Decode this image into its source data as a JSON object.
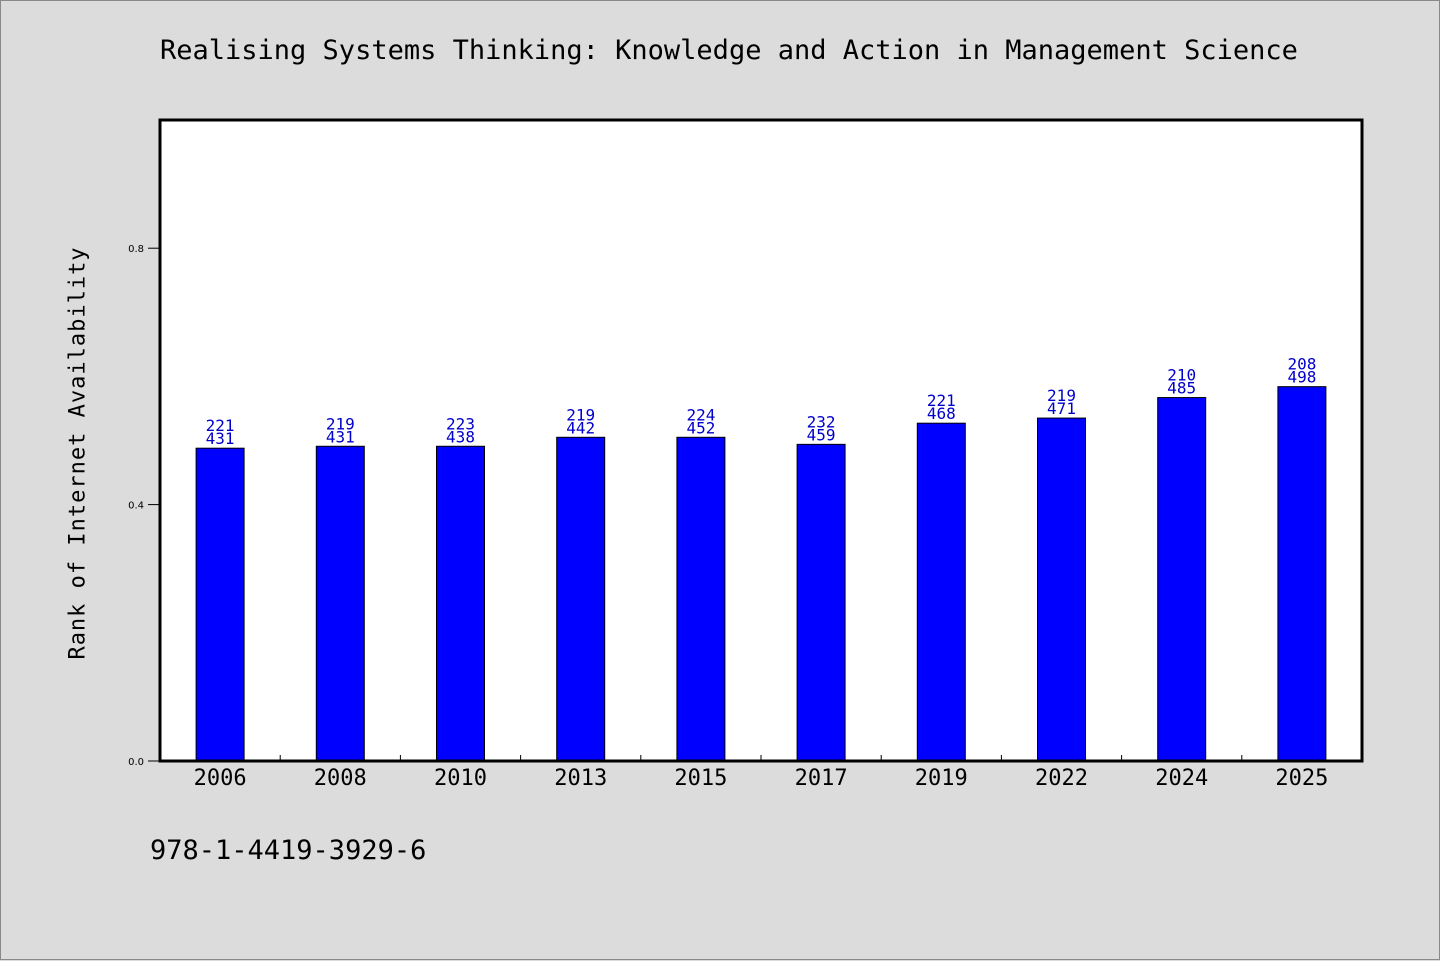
{
  "chart_data": {
    "type": "bar",
    "title": "Realising Systems Thinking: Knowledge and Action in Management Science",
    "ylabel": "Rank of Internet Availability",
    "xlabel": "",
    "footer_text": "978-1-4419-3929-6",
    "categories": [
      "2006",
      "2008",
      "2010",
      "2013",
      "2015",
      "2017",
      "2019",
      "2022",
      "2024",
      "2025"
    ],
    "values": [
      0.488,
      0.491,
      0.491,
      0.505,
      0.505,
      0.494,
      0.527,
      0.535,
      0.567,
      0.584
    ],
    "data_labels": [
      [
        "221",
        "431"
      ],
      [
        "219",
        "431"
      ],
      [
        "223",
        "438"
      ],
      [
        "219",
        "442"
      ],
      [
        "224",
        "452"
      ],
      [
        "232",
        "459"
      ],
      [
        "221",
        "468"
      ],
      [
        "219",
        "471"
      ],
      [
        "210",
        "485"
      ],
      [
        "208",
        "498"
      ]
    ],
    "y_ticks": [
      "0.0",
      "0.4",
      "0.8"
    ],
    "ylim": [
      0,
      1.0
    ],
    "grid": false,
    "legend": "none",
    "colors": {
      "bar": "#0000ff",
      "bar_edge": "#000000",
      "data_label": "#0000cc",
      "background": "#dcdcdc",
      "plot_background": "#ffffff"
    }
  }
}
